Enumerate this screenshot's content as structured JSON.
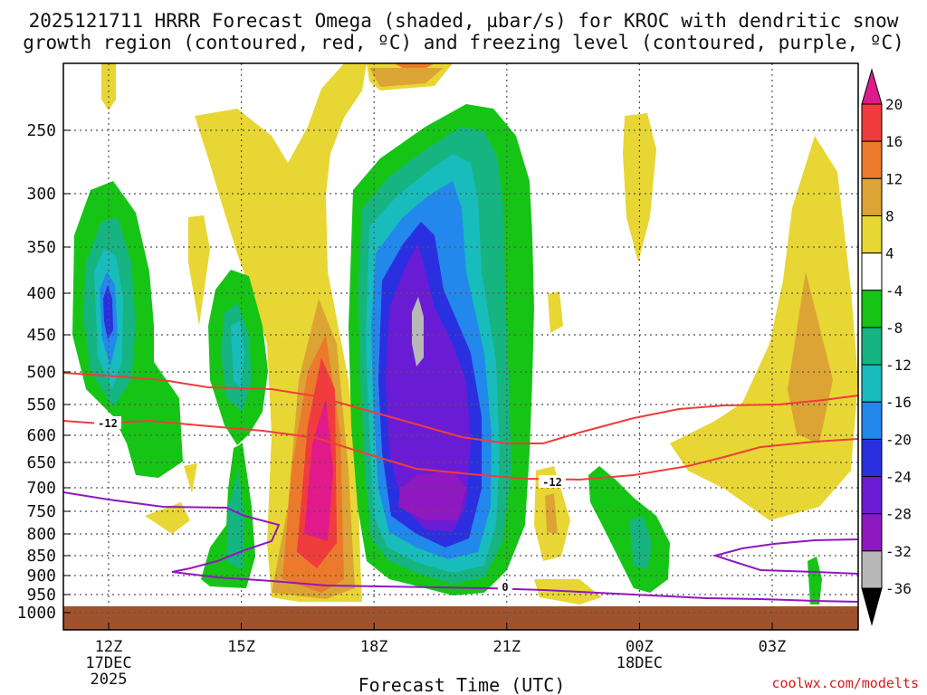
{
  "chart_data": {
    "type": "time-height cross section (filled contour)",
    "title_line1": "2025121711 HRRR Forecast Omega (shaded, µbar/s) for KROC with dendritic snow",
    "title_line2": "growth region (contoured, red, ºC) and freezing level (contoured, purple, ºC)",
    "xlabel": "Forecast Time (UTC)",
    "ylabel": "",
    "credit": "coolwx.com/modelts",
    "x_ticks": [
      {
        "label": "12Z",
        "sub1": "17DEC",
        "sub2": "2025",
        "hour": 12
      },
      {
        "label": "15Z",
        "sub1": "",
        "sub2": "",
        "hour": 15
      },
      {
        "label": "18Z",
        "sub1": "",
        "sub2": "",
        "hour": 18
      },
      {
        "label": "21Z",
        "sub1": "",
        "sub2": "",
        "hour": 21
      },
      {
        "label": "00Z",
        "sub1": "18DEC",
        "sub2": "",
        "hour": 24
      },
      {
        "label": "03Z",
        "sub1": "",
        "sub2": "",
        "hour": 27
      }
    ],
    "x_range_hours": [
      11,
      29
    ],
    "y_ticks_hpa": [
      "250",
      "300",
      "350",
      "400",
      "450",
      "500",
      "550",
      "600",
      "650",
      "700",
      "750",
      "800",
      "850",
      "900",
      "950",
      "1000"
    ],
    "colorbar_labels": [
      "20",
      "16",
      "12",
      "8",
      "4",
      "-4",
      "-8",
      "-12",
      "-16",
      "-20",
      "-24",
      "-28",
      "-32",
      "-36"
    ],
    "colorbar_colors": [
      "#e01a8a",
      "#f03c3c",
      "#ec7a2c",
      "#dca434",
      "#e8d634",
      "#ffffff",
      "#16c416",
      "#16b480",
      "#18bcbc",
      "#2288ec",
      "#2a30e0",
      "#6a1cd4",
      "#9018c0",
      "#b8b8b8",
      "#000000"
    ],
    "contour_labels": {
      "dgz_label_left": "-12",
      "dgz_label_mid": "-12",
      "freezing_label": "0"
    },
    "omega_cells": [
      {
        "name": "ascent-12z-column",
        "center_hour": 12.0,
        "center_hpa": 410,
        "min_omega": -24
      },
      {
        "name": "ascent-15z-column",
        "center_hour": 15.0,
        "center_hpa": 470,
        "min_omega": -16
      },
      {
        "name": "ascent-19z-main",
        "center_hour": 19.0,
        "center_hpa": 480,
        "min_omega": -32
      },
      {
        "name": "descent-17z-band",
        "center_hour": 16.8,
        "center_hpa": 680,
        "max_omega": 20
      },
      {
        "name": "descent-03z-band",
        "center_hour": 28.0,
        "center_hpa": 450,
        "max_omega": 8
      }
    ],
    "dgz_contours_degC": [
      -12,
      -18
    ],
    "freezing_level_degC": 0
  }
}
